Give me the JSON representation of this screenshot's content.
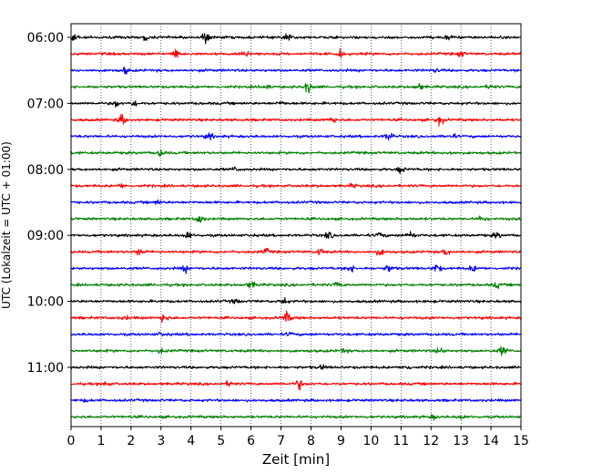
{
  "chart_data": {
    "type": "line",
    "title": "",
    "xlabel": "Zeit  [min]",
    "ylabel": "UTC (Lokalzeit = UTC + 01:00)",
    "xlim": [
      0,
      15
    ],
    "x_ticks": [
      0,
      1,
      2,
      3,
      4,
      5,
      6,
      7,
      8,
      9,
      10,
      11,
      12,
      13,
      14,
      15
    ],
    "y_tick_labels": [
      "06:00",
      "07:00",
      "08:00",
      "09:00",
      "10:00",
      "11:00"
    ],
    "grid": "vertical dotted lines at each minute",
    "row_interval_minutes": 15,
    "rows_per_hour": 4,
    "first_row": "06:00",
    "row_count": 24,
    "color_cycle": [
      "#000000",
      "#ff0000",
      "#0000ff",
      "#008000"
    ],
    "events": [
      {
        "row": 0,
        "minute": 0.1,
        "amp": 0.9
      },
      {
        "row": 0,
        "minute": 2.5,
        "amp": 0.5
      },
      {
        "row": 0,
        "minute": 4.5,
        "amp": 1.0
      },
      {
        "row": 0,
        "minute": 7.2,
        "amp": 0.9
      },
      {
        "row": 0,
        "minute": 12.6,
        "amp": 0.4
      },
      {
        "row": 1,
        "minute": 3.5,
        "amp": 0.9
      },
      {
        "row": 1,
        "minute": 5.8,
        "amp": 0.8
      },
      {
        "row": 1,
        "minute": 9.0,
        "amp": 0.6
      },
      {
        "row": 1,
        "minute": 13.0,
        "amp": 0.5
      },
      {
        "row": 2,
        "minute": 1.8,
        "amp": 0.6
      },
      {
        "row": 2,
        "minute": 12.2,
        "amp": 0.3
      },
      {
        "row": 3,
        "minute": 6.5,
        "amp": 0.4
      },
      {
        "row": 3,
        "minute": 7.9,
        "amp": 1.0
      },
      {
        "row": 3,
        "minute": 11.6,
        "amp": 0.6
      },
      {
        "row": 3,
        "minute": 14.0,
        "amp": 0.4
      },
      {
        "row": 4,
        "minute": 1.5,
        "amp": 0.6
      },
      {
        "row": 4,
        "minute": 2.1,
        "amp": 0.5
      },
      {
        "row": 4,
        "minute": 7.0,
        "amp": 0.3
      },
      {
        "row": 5,
        "minute": 1.7,
        "amp": 0.9
      },
      {
        "row": 5,
        "minute": 8.7,
        "amp": 0.6
      },
      {
        "row": 5,
        "minute": 12.3,
        "amp": 0.9
      },
      {
        "row": 6,
        "minute": 4.6,
        "amp": 0.6
      },
      {
        "row": 6,
        "minute": 10.6,
        "amp": 0.8
      },
      {
        "row": 6,
        "minute": 12.7,
        "amp": 0.4
      },
      {
        "row": 7,
        "minute": 3.0,
        "amp": 0.7
      },
      {
        "row": 7,
        "minute": 12.6,
        "amp": 0.3
      },
      {
        "row": 8,
        "minute": 5.5,
        "amp": 0.4
      },
      {
        "row": 8,
        "minute": 11.0,
        "amp": 0.6
      },
      {
        "row": 9,
        "minute": 1.7,
        "amp": 0.3
      },
      {
        "row": 9,
        "minute": 9.4,
        "amp": 0.3
      },
      {
        "row": 10,
        "minute": 2.9,
        "amp": 0.4
      },
      {
        "row": 11,
        "minute": 4.3,
        "amp": 0.9
      },
      {
        "row": 11,
        "minute": 13.7,
        "amp": 0.6
      },
      {
        "row": 12,
        "minute": 3.9,
        "amp": 0.7
      },
      {
        "row": 12,
        "minute": 8.6,
        "amp": 0.6
      },
      {
        "row": 12,
        "minute": 10.3,
        "amp": 0.5
      },
      {
        "row": 12,
        "minute": 11.3,
        "amp": 0.8
      },
      {
        "row": 12,
        "minute": 14.2,
        "amp": 0.5
      },
      {
        "row": 13,
        "minute": 2.3,
        "amp": 0.6
      },
      {
        "row": 13,
        "minute": 6.5,
        "amp": 0.5
      },
      {
        "row": 13,
        "minute": 8.3,
        "amp": 0.6
      },
      {
        "row": 13,
        "minute": 10.3,
        "amp": 0.6
      },
      {
        "row": 13,
        "minute": 12.5,
        "amp": 0.6
      },
      {
        "row": 14,
        "minute": 3.8,
        "amp": 0.6
      },
      {
        "row": 14,
        "minute": 9.3,
        "amp": 0.7
      },
      {
        "row": 14,
        "minute": 10.6,
        "amp": 0.7
      },
      {
        "row": 14,
        "minute": 12.2,
        "amp": 0.8
      },
      {
        "row": 14,
        "minute": 13.4,
        "amp": 0.5
      },
      {
        "row": 15,
        "minute": 6.0,
        "amp": 0.6
      },
      {
        "row": 15,
        "minute": 8.9,
        "amp": 0.5
      },
      {
        "row": 15,
        "minute": 14.2,
        "amp": 0.5
      },
      {
        "row": 16,
        "minute": 5.5,
        "amp": 0.4
      },
      {
        "row": 16,
        "minute": 7.1,
        "amp": 0.6
      },
      {
        "row": 17,
        "minute": 1.8,
        "amp": 0.3
      },
      {
        "row": 17,
        "minute": 3.1,
        "amp": 0.9
      },
      {
        "row": 17,
        "minute": 7.2,
        "amp": 1.0
      },
      {
        "row": 18,
        "minute": 3.0,
        "amp": 0.3
      },
      {
        "row": 18,
        "minute": 7.3,
        "amp": 0.3
      },
      {
        "row": 19,
        "minute": 3.0,
        "amp": 0.4
      },
      {
        "row": 19,
        "minute": 9.1,
        "amp": 0.4
      },
      {
        "row": 19,
        "minute": 12.3,
        "amp": 0.5
      },
      {
        "row": 19,
        "minute": 14.4,
        "amp": 0.9
      },
      {
        "row": 20,
        "minute": 8.4,
        "amp": 0.4
      },
      {
        "row": 20,
        "minute": 11.2,
        "amp": 0.4
      },
      {
        "row": 21,
        "minute": 1.2,
        "amp": 0.5
      },
      {
        "row": 21,
        "minute": 5.3,
        "amp": 0.5
      },
      {
        "row": 21,
        "minute": 7.6,
        "amp": 0.9
      },
      {
        "row": 22,
        "minute": 0.5,
        "amp": 0.2
      },
      {
        "row": 23,
        "minute": 12.1,
        "amp": 0.4
      },
      {
        "row": 23,
        "minute": 13.0,
        "amp": 0.4
      }
    ]
  }
}
